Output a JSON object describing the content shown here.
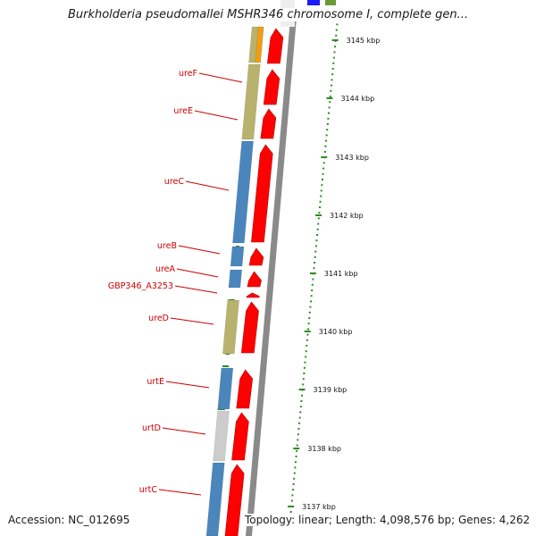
{
  "title": "Burkholderia pseudomallei MSHR346 chromosome I, complete gen...",
  "footer": {
    "accession": "Accession: NC_012695",
    "info": "Topology: linear; Length: 4,098,576 bp; Genes: 4,262"
  },
  "axis_ticks": [
    "3145 kbp",
    "3144 kbp",
    "3143 kbp",
    "3142 kbp",
    "3141 kbp",
    "3140 kbp",
    "3139 kbp",
    "3138 kbp",
    "3137 kbp"
  ],
  "genes": [
    {
      "label": "ureF",
      "color": "#b8b26e"
    },
    {
      "label": "ureE",
      "color": "#b8b26e"
    },
    {
      "label": "ureC",
      "color": "#4a86bc"
    },
    {
      "label": "ureB",
      "color": "#4a86bc"
    },
    {
      "label": "ureA",
      "color": "#4a86bc"
    },
    {
      "label": "GBP346_A3253",
      "color": "#ffffff"
    },
    {
      "label": "ureD",
      "color": "#b8b26e"
    },
    {
      "label": "urtE",
      "color": "#4a86bc"
    },
    {
      "label": "urtD",
      "color": "#cccccc"
    },
    {
      "label": "urtC",
      "color": "#4a86bc"
    }
  ],
  "colors": {
    "cds_arrow": "#ff0000",
    "label_red": "#cc0000",
    "backbone": "#8a8a8a",
    "gc_green": "#2e8b22",
    "orange": "#f39c12",
    "blue_top": "#1a1aff"
  }
}
